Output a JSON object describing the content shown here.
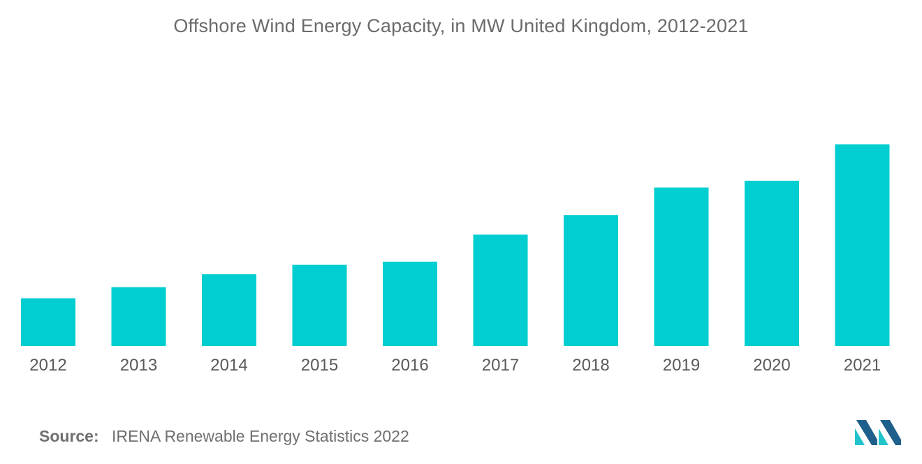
{
  "chart_data": {
    "type": "bar",
    "title": "Offshore Wind Energy Capacity, in MW United Kingdom, 2012-2021",
    "categories": [
      "2012",
      "2013",
      "2014",
      "2015",
      "2016",
      "2017",
      "2018",
      "2019",
      "2020",
      "2021"
    ],
    "values": [
      2995,
      3696,
      4501,
      5094,
      5293,
      6988,
      8216,
      9945,
      10365,
      12650
    ],
    "ylim": [
      0,
      14000
    ],
    "grid": false,
    "legend": "none",
    "bar_color": "#00CED1"
  },
  "source": {
    "label": "Source:",
    "text": "IRENA Renewable Energy Statistics 2022"
  },
  "logo": {
    "icon": "mordor-intelligence-logo-icon",
    "color_dark": "#1f5f8b",
    "color_light": "#22c4cc"
  }
}
